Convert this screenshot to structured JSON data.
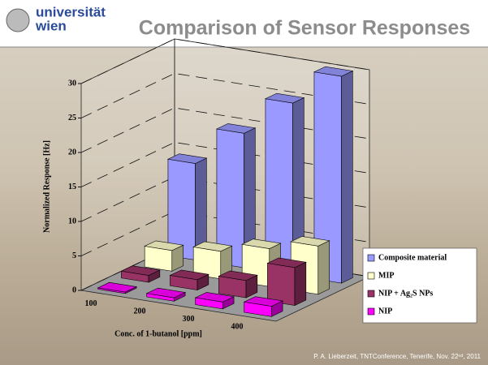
{
  "slide": {
    "logo_line1": "universität",
    "logo_line2": "wien",
    "title": "Comparison of Sensor Responses",
    "footer": "P. A. Lieberzeit, TNTConference, Tenerife, Nov. 22ⁿᵈ, 2011"
  },
  "chart_data": {
    "type": "bar3d",
    "y_label": "Normalized Response [Hz]",
    "x_label": "Conc. of 1-butanol [ppm]",
    "categories": [
      "100",
      "200",
      "300",
      "400"
    ],
    "series": [
      {
        "name": "NIP",
        "color": "#ff00ff",
        "values": [
          0.2,
          0.5,
          1,
          1.5
        ]
      },
      {
        "name": "NIP + Ag₂S NPs",
        "color": "#993366",
        "values": [
          1,
          1.5,
          2.5,
          5.5
        ]
      },
      {
        "name": "MIP",
        "color": "#ffffcc",
        "values": [
          3,
          4,
          5.5,
          7
        ]
      },
      {
        "name": "Composite material",
        "color": "#9999ff",
        "values": [
          14,
          19.5,
          25,
          30
        ]
      }
    ],
    "ylim": [
      0,
      30
    ],
    "yticks": [
      0,
      5,
      10,
      15,
      20,
      25,
      30
    ],
    "grid": true
  }
}
